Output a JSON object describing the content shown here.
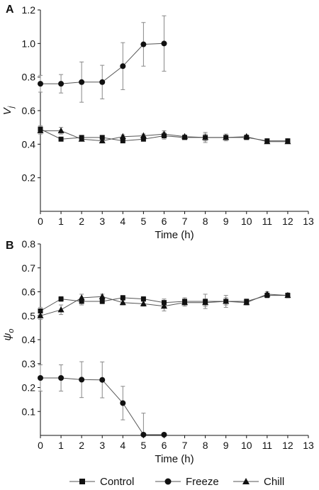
{
  "figure": {
    "legend": [
      {
        "name": "Control",
        "marker": "square"
      },
      {
        "name": "Freeze",
        "marker": "circle"
      },
      {
        "name": "Chill",
        "marker": "triangle"
      }
    ]
  },
  "colors": {
    "axis": "#111111",
    "series_line": "#555555",
    "marker": "#111111",
    "error_bar": "#888888"
  },
  "chart_data": [
    {
      "type": "line",
      "panel": "A",
      "xlabel": "Time (h)",
      "ylabel": "V",
      "ylabel_subscript": "j",
      "xlim": [
        0,
        13
      ],
      "ylim": [
        0,
        1.2
      ],
      "x_ticks": [
        "0",
        "1",
        "2",
        "3",
        "4",
        "5",
        "6",
        "7",
        "8",
        "9",
        "10",
        "11",
        "12",
        "13"
      ],
      "y_ticks": [
        "0.2",
        "0.4",
        "0.6",
        "0.8",
        "1.0",
        "1.2"
      ],
      "grid": false,
      "series": [
        {
          "name": "Control",
          "marker": "square",
          "x": [
            0,
            1,
            2,
            3,
            4,
            5,
            6,
            7,
            8,
            9,
            10,
            11,
            12
          ],
          "y": [
            0.49,
            0.43,
            0.44,
            0.44,
            0.42,
            0.43,
            0.45,
            0.44,
            0.44,
            0.44,
            0.44,
            0.42,
            0.42
          ],
          "err": [
            0.02,
            0.01,
            0.01,
            0.01,
            0.01,
            0.01,
            0.02,
            0.01,
            0.02,
            0.01,
            0.01,
            0.01,
            0.01
          ]
        },
        {
          "name": "Freeze",
          "marker": "circle",
          "x": [
            0,
            1,
            2,
            3,
            4,
            5,
            6
          ],
          "y": [
            0.76,
            0.76,
            0.77,
            0.77,
            0.865,
            0.995,
            1.0
          ],
          "err": [
            0.05,
            0.055,
            0.12,
            0.1,
            0.14,
            0.13,
            0.165
          ]
        },
        {
          "name": "Chill",
          "marker": "triangle",
          "x": [
            0,
            1,
            2,
            3,
            4,
            5,
            6,
            7,
            8,
            9,
            10,
            11,
            12
          ],
          "y": [
            0.48,
            0.48,
            0.43,
            0.42,
            0.445,
            0.45,
            0.46,
            0.445,
            0.44,
            0.44,
            0.445,
            0.415,
            0.415
          ],
          "err": [
            0.02,
            0.02,
            0.01,
            0.01,
            0.01,
            0.01,
            0.02,
            0.01,
            0.03,
            0.02,
            0.01,
            0.01,
            0.01
          ]
        }
      ]
    },
    {
      "type": "line",
      "panel": "B",
      "xlabel": "Time (h)",
      "ylabel": "ψ",
      "ylabel_subscript": "o",
      "xlim": [
        0,
        13
      ],
      "ylim": [
        0,
        0.8
      ],
      "x_ticks": [
        "0",
        "1",
        "2",
        "3",
        "4",
        "5",
        "6",
        "7",
        "8",
        "9",
        "10",
        "11",
        "12",
        "13"
      ],
      "y_ticks": [
        "0.1",
        "0.2",
        "0.3",
        "0.4",
        "0.5",
        "0.6",
        "0.7",
        "0.8"
      ],
      "grid": false,
      "series": [
        {
          "name": "Control",
          "marker": "square",
          "x": [
            0,
            1,
            2,
            3,
            4,
            5,
            6,
            7,
            8,
            9,
            10,
            11,
            12
          ],
          "y": [
            0.52,
            0.57,
            0.56,
            0.56,
            0.575,
            0.57,
            0.555,
            0.56,
            0.56,
            0.56,
            0.56,
            0.585,
            0.585
          ],
          "err": [
            0.015,
            0.01,
            0.015,
            0.01,
            0.01,
            0.01,
            0.015,
            0.015,
            0.03,
            0.025,
            0.01,
            0.01,
            0.01
          ]
        },
        {
          "name": "Freeze",
          "marker": "circle",
          "x": [
            0,
            1,
            2,
            3,
            4,
            5,
            6
          ],
          "y": [
            0.24,
            0.24,
            0.233,
            0.232,
            0.135,
            0.003,
            0.003
          ],
          "err": [
            0.055,
            0.055,
            0.075,
            0.075,
            0.07,
            0.09,
            0.003
          ]
        },
        {
          "name": "Chill",
          "marker": "triangle",
          "x": [
            0,
            1,
            2,
            3,
            4,
            5,
            6,
            7,
            8,
            9,
            10,
            11,
            12
          ],
          "y": [
            0.5,
            0.525,
            0.575,
            0.58,
            0.555,
            0.55,
            0.54,
            0.555,
            0.555,
            0.56,
            0.555,
            0.59,
            0.585
          ],
          "err": [
            0.015,
            0.02,
            0.015,
            0.01,
            0.01,
            0.01,
            0.02,
            0.015,
            0.015,
            0.015,
            0.01,
            0.01,
            0.01
          ]
        }
      ]
    }
  ]
}
